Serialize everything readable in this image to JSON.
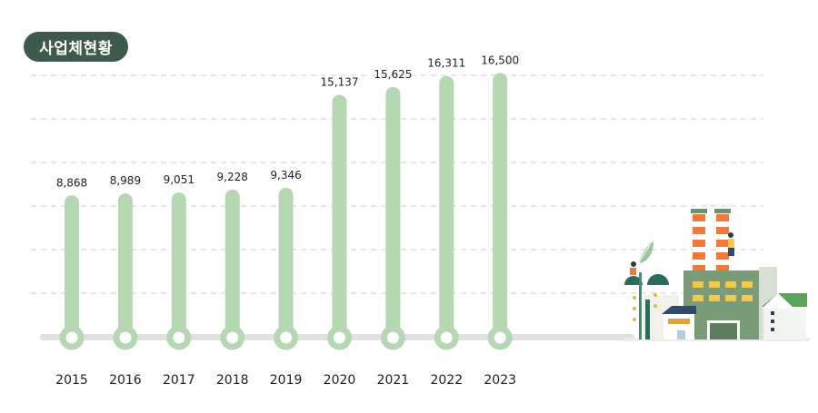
{
  "badge": {
    "title": "사업체현황"
  },
  "colors": {
    "bar": "#b5d7b1",
    "baseline": "#e1e1e1",
    "grid": "#cfcfcf",
    "badge_bg": "#3d5a4a",
    "text": "#222222"
  },
  "illustration": {
    "icon": "factory-city-illustration-icon"
  },
  "chart_data": {
    "type": "bar",
    "title": "사업체현황",
    "categories": [
      "2015",
      "2016",
      "2017",
      "2018",
      "2019",
      "2020",
      "2021",
      "2022",
      "2023"
    ],
    "values": [
      8868,
      8989,
      9051,
      9228,
      9346,
      15137,
      15625,
      16311,
      16500
    ],
    "value_labels": [
      "8,868",
      "8,989",
      "9,051",
      "9,228",
      "9,346",
      "15,137",
      "15,625",
      "16,311",
      "16,500"
    ],
    "xlabel": "",
    "ylabel": "",
    "ylim": [
      0,
      18500
    ],
    "grid": true,
    "legend": "none"
  }
}
